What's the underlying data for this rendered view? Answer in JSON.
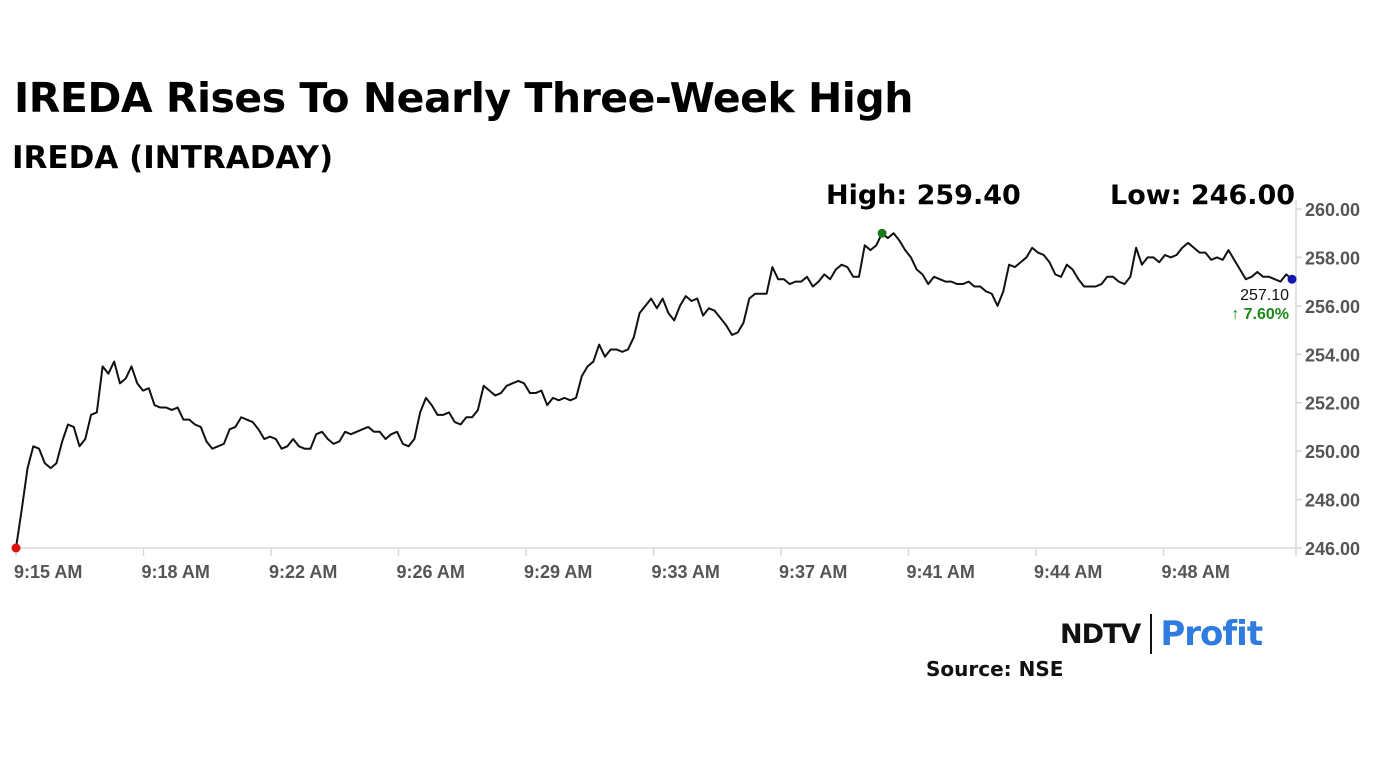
{
  "title": "IREDA Rises To Nearly Three-Week High",
  "subtitle": "IREDA (INTRADAY)",
  "stats": {
    "high": "High: 259.40",
    "low": "Low: 246.00"
  },
  "last": {
    "price": "257.10",
    "change": "↑ 7.60%"
  },
  "logo": {
    "ndtv": "NDTV",
    "profit": "Profit"
  },
  "source": "Source: NSE",
  "colors": {
    "line": "#111111",
    "high_dot": "#1a7a1a",
    "low_dot": "#e01010",
    "last_dot": "#1414b4",
    "change": "#1a8a1a",
    "axis": "#d8d8d8",
    "profit": "#2f7be0"
  },
  "chart_data": {
    "type": "line",
    "title": "IREDA (INTRADAY)",
    "xlabel": "",
    "ylabel": "",
    "ylim": [
      246,
      260
    ],
    "yticks": [
      "246.00",
      "248.00",
      "250.00",
      "252.00",
      "254.00",
      "256.00",
      "258.00",
      "260.00"
    ],
    "xticks": [
      "9:15 AM",
      "9:18 AM",
      "9:22 AM",
      "9:26 AM",
      "9:29 AM",
      "9:33 AM",
      "9:37 AM",
      "9:41 AM",
      "9:44 AM",
      "9:48 AM"
    ],
    "grid": false,
    "high": 259.4,
    "low": 246.0,
    "last": 257.1,
    "series": [
      {
        "values": [
          246.0,
          247.6,
          249.3,
          250.2,
          250.1,
          249.5,
          249.3,
          249.5,
          250.4,
          251.1,
          251.0,
          250.2,
          250.5,
          251.5,
          251.6,
          253.5,
          253.2,
          253.7,
          252.8,
          253.0,
          253.5,
          252.8,
          252.5,
          252.6,
          251.9,
          251.8,
          251.8,
          251.7,
          251.8,
          251.3,
          251.3,
          251.1,
          251.0,
          250.4,
          250.1,
          250.2,
          250.3,
          250.9,
          251.0,
          251.4,
          251.3,
          251.2,
          250.9,
          250.5,
          250.6,
          250.5,
          250.1,
          250.2,
          250.5,
          250.2,
          250.1,
          250.1,
          250.7,
          250.8,
          250.5,
          250.3,
          250.4,
          250.8,
          250.7,
          250.8,
          250.9,
          251.0,
          250.8,
          250.8,
          250.5,
          250.7,
          250.8,
          250.3,
          250.2,
          250.5,
          251.6,
          252.2,
          251.9,
          251.5,
          251.5,
          251.6,
          251.2,
          251.1,
          251.4,
          251.4,
          251.7,
          252.7,
          252.5,
          252.3,
          252.4,
          252.7,
          252.8,
          252.9,
          252.8,
          252.4,
          252.4,
          252.5,
          251.9,
          252.2,
          252.1,
          252.2,
          252.1,
          252.2,
          253.1,
          253.5,
          253.7,
          254.4,
          253.9,
          254.2,
          254.2,
          254.1,
          254.2,
          254.7,
          255.7,
          256.0,
          256.3,
          255.9,
          256.3,
          255.7,
          255.4,
          256.0,
          256.4,
          256.2,
          256.3,
          255.6,
          255.9,
          255.8,
          255.5,
          255.2,
          254.8,
          254.9,
          255.3,
          256.3,
          256.5,
          256.5,
          256.5,
          257.6,
          257.1,
          257.1,
          256.9,
          257.0,
          257.0,
          257.2,
          256.8,
          257.0,
          257.3,
          257.1,
          257.5,
          257.7,
          257.6,
          257.2,
          257.2,
          258.5,
          258.3,
          258.5,
          259.0,
          258.8,
          259.0,
          258.7,
          258.3,
          258.0,
          257.5,
          257.3,
          256.9,
          257.2,
          257.1,
          257.0,
          257.0,
          256.9,
          256.9,
          257.0,
          256.8,
          256.8,
          256.6,
          256.5,
          256.0,
          256.6,
          257.7,
          257.6,
          257.8,
          258.0,
          258.4,
          258.2,
          258.1,
          257.8,
          257.3,
          257.2,
          257.7,
          257.5,
          257.1,
          256.8,
          256.8,
          256.8,
          256.9,
          257.2,
          257.2,
          257.0,
          256.9,
          257.2,
          258.4,
          257.7,
          258.0,
          258.0,
          257.8,
          258.1,
          258.0,
          258.1,
          258.4,
          258.6,
          258.4,
          258.2,
          258.2,
          257.9,
          258.0,
          257.9,
          258.3,
          257.9,
          257.5,
          257.1,
          257.2,
          257.4,
          257.2,
          257.2,
          257.1,
          257.0,
          257.3,
          257.1
        ]
      }
    ]
  }
}
